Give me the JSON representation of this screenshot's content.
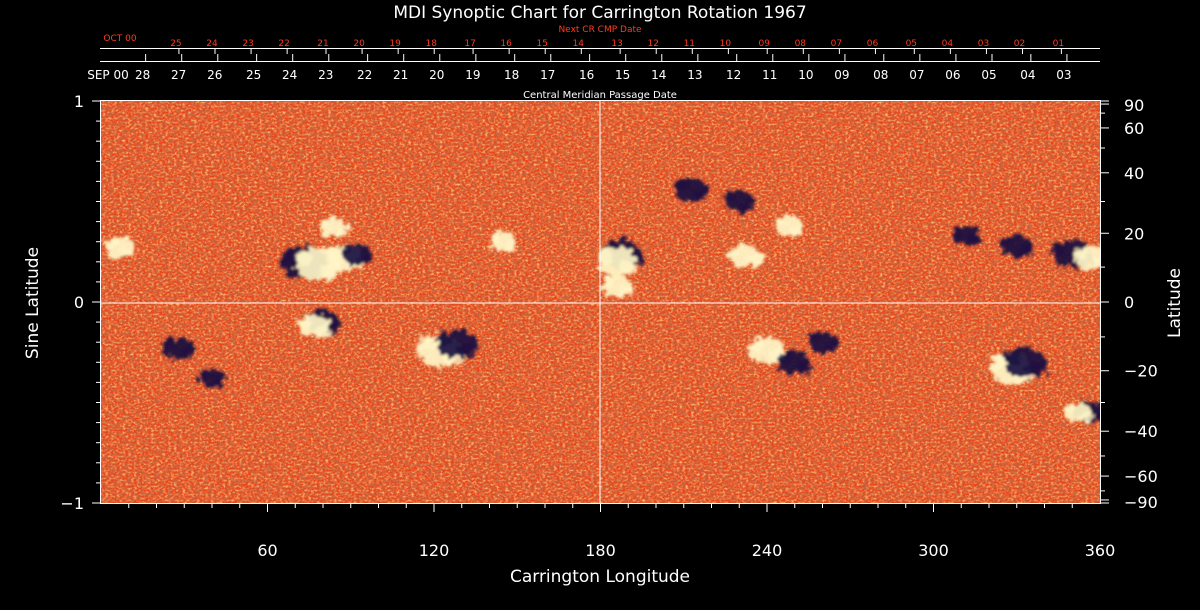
{
  "colors": {
    "background": "#000000",
    "foreground": "#ffffff",
    "next_cr_label": "#ff3b1f",
    "field_base": "#e8451a",
    "field_dark": "#b82a10",
    "field_light": "#ff8a2a",
    "positive_polarity": "#fff6c8",
    "negative_polarity": "#1a1040"
  },
  "chart_data": {
    "type": "heatmap",
    "title": "MDI Synoptic Chart for Carrington Rotation 1967",
    "xlabel": "Carrington Longitude",
    "ylabel_left": "Sine Latitude",
    "ylabel_right": "Latitude",
    "xlim": [
      0,
      360
    ],
    "ylim": [
      -1,
      1
    ],
    "x_ticks": [
      60,
      120,
      180,
      240,
      300,
      360
    ],
    "y_ticks_left": [
      1,
      0,
      -1
    ],
    "y_tick_labels_left": [
      "1",
      "0",
      "−1"
    ],
    "y_ticks_right_deg": [
      90,
      60,
      40,
      20,
      0,
      -20,
      -40,
      -60,
      -90
    ],
    "y_tick_labels_right": [
      "90",
      "60",
      "40",
      "20",
      "0",
      "−20",
      "−40",
      "−60",
      "−90"
    ],
    "reference_lines": {
      "equator_sine_latitude": 0,
      "central_longitude": 180
    },
    "top_axis": {
      "label": "Central Meridian Passage Date",
      "month_labels": [
        "SEP 00"
      ],
      "dates": [
        {
          "day": "28",
          "lon": 15
        },
        {
          "day": "27",
          "lon": 28
        },
        {
          "day": "26",
          "lon": 41
        },
        {
          "day": "25",
          "lon": 55
        },
        {
          "day": "24",
          "lon": 68
        },
        {
          "day": "23",
          "lon": 81
        },
        {
          "day": "22",
          "lon": 95
        },
        {
          "day": "21",
          "lon": 108
        },
        {
          "day": "20",
          "lon": 121
        },
        {
          "day": "19",
          "lon": 134
        },
        {
          "day": "18",
          "lon": 148
        },
        {
          "day": "17",
          "lon": 161
        },
        {
          "day": "16",
          "lon": 175
        },
        {
          "day": "15",
          "lon": 188
        },
        {
          "day": "14",
          "lon": 201
        },
        {
          "day": "13",
          "lon": 214
        },
        {
          "day": "12",
          "lon": 228
        },
        {
          "day": "11",
          "lon": 241
        },
        {
          "day": "10",
          "lon": 254
        },
        {
          "day": "09",
          "lon": 267
        },
        {
          "day": "08",
          "lon": 281
        },
        {
          "day": "07",
          "lon": 294
        },
        {
          "day": "06",
          "lon": 307
        },
        {
          "day": "05",
          "lon": 320
        },
        {
          "day": "04",
          "lon": 334
        },
        {
          "day": "03",
          "lon": 347
        }
      ]
    },
    "next_cr_axis": {
      "label": "Next CR CMP Date",
      "month_labels": [
        "OCT 00"
      ],
      "dates": [
        {
          "day": "25",
          "lon": 27
        },
        {
          "day": "24",
          "lon": 40
        },
        {
          "day": "23",
          "lon": 53
        },
        {
          "day": "22",
          "lon": 66
        },
        {
          "day": "21",
          "lon": 80
        },
        {
          "day": "20",
          "lon": 93
        },
        {
          "day": "19",
          "lon": 106
        },
        {
          "day": "18",
          "lon": 119
        },
        {
          "day": "17",
          "lon": 133
        },
        {
          "day": "16",
          "lon": 146
        },
        {
          "day": "15",
          "lon": 159
        },
        {
          "day": "14",
          "lon": 172
        },
        {
          "day": "13",
          "lon": 186
        },
        {
          "day": "12",
          "lon": 199
        },
        {
          "day": "11",
          "lon": 212
        },
        {
          "day": "10",
          "lon": 225
        },
        {
          "day": "09",
          "lon": 239
        },
        {
          "day": "08",
          "lon": 252
        },
        {
          "day": "07",
          "lon": 265
        },
        {
          "day": "06",
          "lon": 278
        },
        {
          "day": "05",
          "lon": 292
        },
        {
          "day": "04",
          "lon": 305
        },
        {
          "day": "03",
          "lon": 318
        },
        {
          "day": "02",
          "lon": 331
        },
        {
          "day": "01",
          "lon": 345
        }
      ]
    },
    "active_regions": [
      {
        "lon": 73,
        "sinlat": 0.2,
        "polarity": "negative",
        "strength": 1.0
      },
      {
        "lon": 78,
        "sinlat": 0.19,
        "polarity": "positive",
        "strength": 1.0
      },
      {
        "lon": 88,
        "sinlat": 0.22,
        "polarity": "positive",
        "strength": 0.7
      },
      {
        "lon": 92,
        "sinlat": 0.24,
        "polarity": "negative",
        "strength": 0.5
      },
      {
        "lon": 84,
        "sinlat": 0.37,
        "polarity": "positive",
        "strength": 0.4
      },
      {
        "lon": 80,
        "sinlat": -0.1,
        "polarity": "negative",
        "strength": 0.6
      },
      {
        "lon": 77,
        "sinlat": -0.12,
        "polarity": "positive",
        "strength": 0.5
      },
      {
        "lon": 122,
        "sinlat": -0.24,
        "polarity": "positive",
        "strength": 1.0
      },
      {
        "lon": 128,
        "sinlat": -0.21,
        "polarity": "negative",
        "strength": 0.8
      },
      {
        "lon": 188,
        "sinlat": 0.24,
        "polarity": "negative",
        "strength": 0.8
      },
      {
        "lon": 186,
        "sinlat": 0.2,
        "polarity": "positive",
        "strength": 0.8
      },
      {
        "lon": 186,
        "sinlat": 0.08,
        "polarity": "positive",
        "strength": 0.5
      },
      {
        "lon": 232,
        "sinlat": 0.23,
        "polarity": "positive",
        "strength": 0.6
      },
      {
        "lon": 248,
        "sinlat": 0.38,
        "polarity": "positive",
        "strength": 0.5
      },
      {
        "lon": 213,
        "sinlat": 0.56,
        "polarity": "negative",
        "strength": 0.6
      },
      {
        "lon": 230,
        "sinlat": 0.5,
        "polarity": "negative",
        "strength": 0.5
      },
      {
        "lon": 240,
        "sinlat": -0.24,
        "polarity": "positive",
        "strength": 0.7
      },
      {
        "lon": 250,
        "sinlat": -0.3,
        "polarity": "negative",
        "strength": 0.6
      },
      {
        "lon": 260,
        "sinlat": -0.2,
        "polarity": "negative",
        "strength": 0.5
      },
      {
        "lon": 328,
        "sinlat": -0.33,
        "polarity": "positive",
        "strength": 0.9
      },
      {
        "lon": 333,
        "sinlat": -0.3,
        "polarity": "negative",
        "strength": 0.9
      },
      {
        "lon": 356,
        "sinlat": -0.55,
        "polarity": "negative",
        "strength": 0.5
      },
      {
        "lon": 352,
        "sinlat": -0.55,
        "polarity": "positive",
        "strength": 0.4
      },
      {
        "lon": 350,
        "sinlat": 0.24,
        "polarity": "negative",
        "strength": 0.8
      },
      {
        "lon": 357,
        "sinlat": 0.22,
        "polarity": "positive",
        "strength": 0.6
      },
      {
        "lon": 330,
        "sinlat": 0.28,
        "polarity": "negative",
        "strength": 0.5
      },
      {
        "lon": 312,
        "sinlat": 0.33,
        "polarity": "negative",
        "strength": 0.4
      },
      {
        "lon": 7,
        "sinlat": 0.27,
        "polarity": "positive",
        "strength": 0.5
      },
      {
        "lon": 28,
        "sinlat": -0.23,
        "polarity": "negative",
        "strength": 0.5
      },
      {
        "lon": 40,
        "sinlat": -0.38,
        "polarity": "negative",
        "strength": 0.4
      },
      {
        "lon": 145,
        "sinlat": 0.3,
        "polarity": "positive",
        "strength": 0.4
      }
    ]
  }
}
